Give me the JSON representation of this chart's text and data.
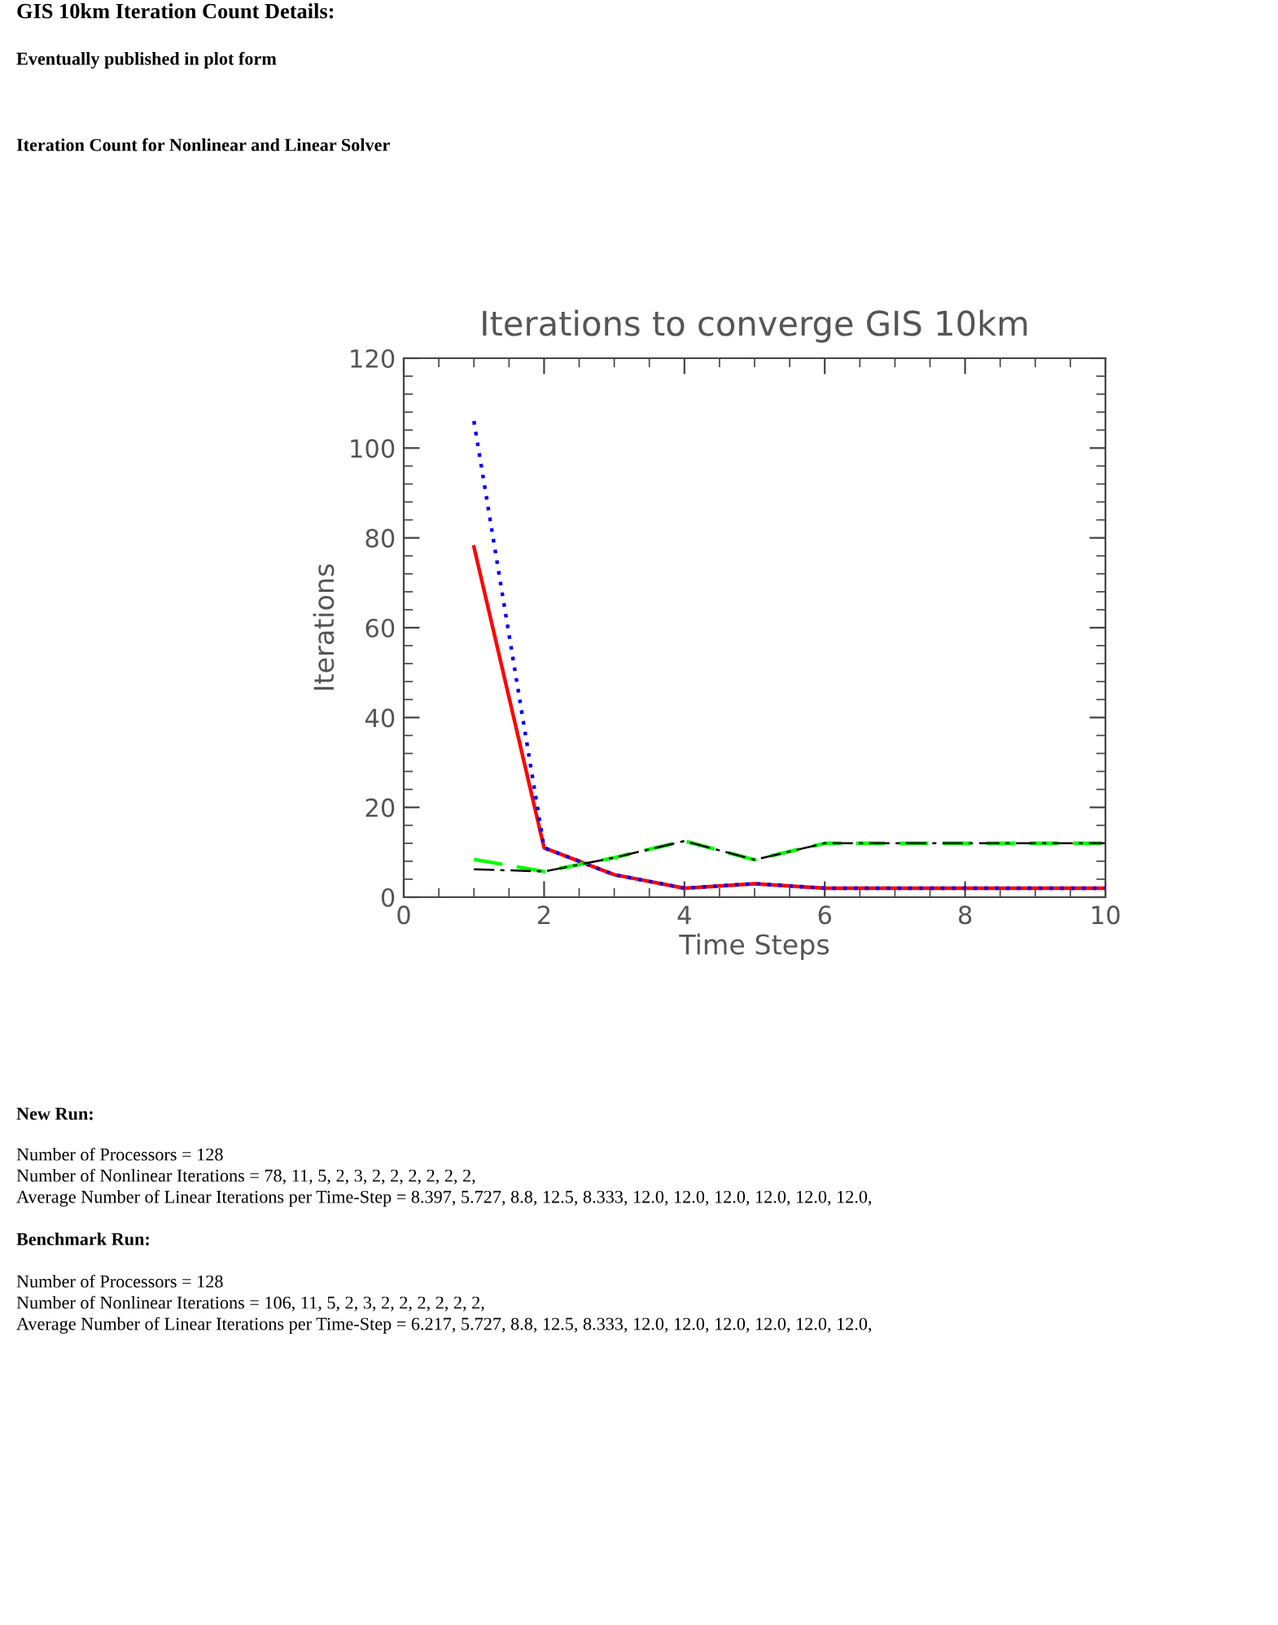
{
  "chart_data": {
    "type": "line",
    "title": "Iterations to converge GIS 10km",
    "xlabel": "Time Steps",
    "ylabel": "Iterations",
    "x": [
      1,
      2,
      3,
      4,
      5,
      6,
      7,
      8,
      9,
      10
    ],
    "series": [
      {
        "color": "#ff0000",
        "line_style": "solid",
        "values": [
          78,
          11,
          5,
          2,
          3,
          2,
          2,
          2,
          2,
          2
        ]
      },
      {
        "color": "#0000ff",
        "line_style": "dotted",
        "values": [
          106,
          11,
          5,
          2,
          3,
          2,
          2,
          2,
          2,
          2
        ]
      },
      {
        "color": "#00ff00",
        "line_style": "dashed",
        "values": [
          8.397,
          5.727,
          8.8,
          12.5,
          8.333,
          12.0,
          12.0,
          12.0,
          12.0,
          12.0
        ]
      },
      {
        "color": "#000000",
        "line_style": "dashdot",
        "values": [
          6.217,
          5.727,
          8.8,
          12.5,
          8.333,
          12.0,
          12.0,
          12.0,
          12.0,
          12.0
        ]
      }
    ],
    "xlim": [
      0,
      10
    ],
    "xticks": [
      0,
      2,
      4,
      6,
      8,
      10
    ],
    "ylim": [
      0,
      120
    ],
    "yticks": [
      0,
      20,
      40,
      60,
      80,
      100,
      120
    ],
    "grid": false,
    "legend": false,
    "marker": "none",
    "annotations": [
      "GIS 10km Iteration Count Details:",
      "Eventually published in plot form",
      "Iteration Count for Nonlinear and Linear Solver",
      "New Run:",
      "Number of Processors = 128",
      "Number of Nonlinear Iterations = 78, 11, 5, 2, 3, 2, 2, 2, 2, 2, 2,",
      "Average Number of Linear Iterations per Time-Step = 8.397, 5.727, 8.8, 12.5, 8.333, 12.0, 12.0, 12.0, 12.0, 12.0, 12.0,",
      "Benchmark Run:",
      "Number of Processors = 128",
      "Number of Nonlinear Iterations = 106, 11, 5, 2, 3, 2, 2, 2, 2, 2, 2,",
      "Average Number of Linear Iterations per Time-Step = 6.217, 5.727, 8.8, 12.5, 8.333, 12.0, 12.0, 12.0, 12.0, 12.0, 12.0,"
    ]
  }
}
